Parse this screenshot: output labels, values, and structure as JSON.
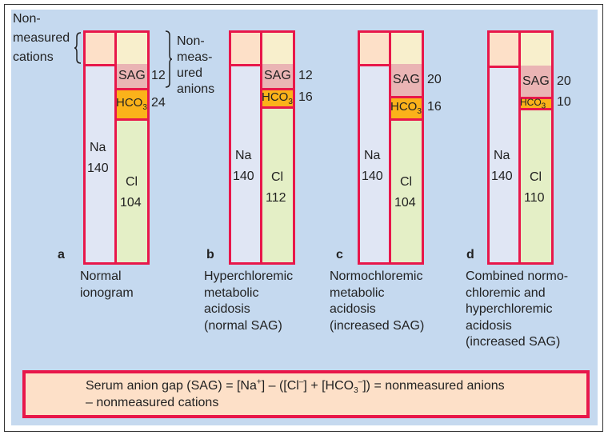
{
  "left_label": [
    "Non-",
    "measured",
    "cations"
  ],
  "right_label": [
    "Non-",
    "meas-",
    "ured",
    "anions"
  ],
  "panels": [
    {
      "letter": "a",
      "na": "140",
      "cl": "104",
      "sag": "12",
      "hco3": "24",
      "caption": [
        "Normal",
        "ionogram"
      ]
    },
    {
      "letter": "b",
      "na": "140",
      "cl": "112",
      "sag": "12",
      "hco3": "16",
      "caption": [
        "Hyperchloremic",
        "metabolic",
        "acidosis",
        "(normal SAG)"
      ]
    },
    {
      "letter": "c",
      "na": "140",
      "cl": "104",
      "sag": "20",
      "hco3": "16",
      "caption": [
        "Normochloremic",
        "metabolic",
        "acidosis",
        "(increased SAG)"
      ]
    },
    {
      "letter": "d",
      "na": "140",
      "cl": "110",
      "sag": "20",
      "hco3": "10",
      "caption": [
        "Combined normo-",
        "chloremic and",
        "hyperchloremic",
        "acidosis",
        "(increased SAG)"
      ]
    }
  ],
  "labels": {
    "na": "Na",
    "cl": "Cl",
    "sag": "SAG",
    "hco3": "HCO",
    "hco3_sub": "3"
  },
  "formula": {
    "line1_a": "Serum anion gap (SAG) = [Na",
    "plus": "+",
    "line1_b": "] – ([Cl",
    "minus": "–",
    "line1_c": "] + [HCO",
    "sub3": "3",
    "minus2": "–",
    "line1_d": "]) = nonmeasured anions",
    "line2": "– nonmeasured cations"
  },
  "colors": {
    "border": "#e8174a",
    "cations": "#fde0c8",
    "anions": "#f8efcc",
    "na": "#e0e6f4",
    "sag": "#eab4b4",
    "hco3": "#fbb21a",
    "cl": "#e4efc6",
    "background": "#c5d9ef"
  }
}
